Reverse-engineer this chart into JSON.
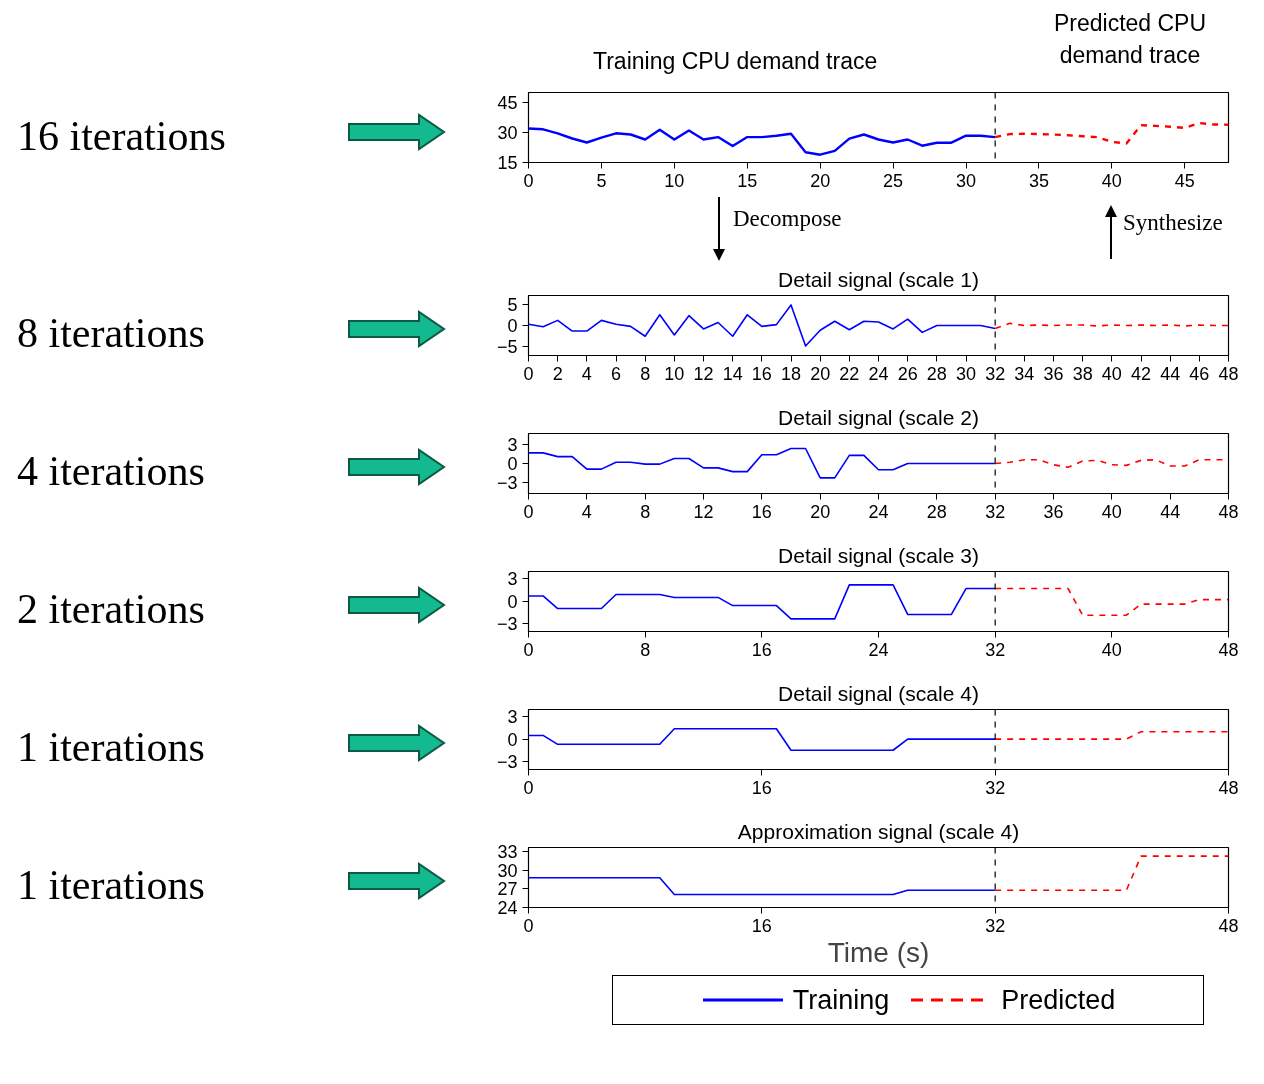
{
  "chart_data": [
    {
      "type": "line",
      "annotations": [
        "16 iterations",
        "Training CPU demand trace",
        "Predicted CPU demand trace",
        "Decompose",
        "Synthesize"
      ],
      "xlim": [
        0,
        48
      ],
      "xticks": [
        0,
        5,
        10,
        15,
        20,
        25,
        30,
        35,
        40,
        45
      ],
      "ylim": [
        15,
        50
      ],
      "yticks": [
        15,
        30,
        45
      ],
      "ref_lines": [
        {
          "axis": "x",
          "value": 32,
          "color": "#000000",
          "line_style": "dashed"
        }
      ],
      "series": [
        {
          "color": "#0000ff",
          "line_style": "solid",
          "x": [
            0,
            1,
            2,
            3,
            4,
            5,
            6,
            7,
            8,
            9,
            10,
            11,
            12,
            13,
            14,
            15,
            16,
            17,
            18,
            19,
            20,
            21,
            22,
            23,
            24,
            25,
            26,
            27,
            28,
            29,
            30,
            31,
            32
          ],
          "values": [
            32,
            31.6,
            29.6,
            27,
            25,
            27.4,
            29.6,
            29,
            26.5,
            31.4,
            26.5,
            31,
            26.5,
            27.7,
            23.2,
            27.7,
            27.7,
            28.4,
            29.4,
            20.1,
            18.9,
            20.8,
            26.9,
            29,
            26.5,
            25,
            26.5,
            23.4,
            24.9,
            24.9,
            28.4,
            28.4,
            27.7
          ]
        },
        {
          "color": "#ff0000",
          "line_style": "dashed",
          "x": [
            32,
            33,
            34,
            35,
            36,
            37,
            38,
            39,
            40,
            41,
            42,
            43,
            44,
            45,
            46,
            47,
            48
          ],
          "values": [
            27.7,
            29.2,
            29.4,
            29.2,
            29,
            28.6,
            28.1,
            27.7,
            25.3,
            24.5,
            33.7,
            33.3,
            32.9,
            32.3,
            34.7,
            34,
            33.9
          ]
        }
      ]
    },
    {
      "type": "line",
      "title": "Detail signal (scale 1)",
      "annotations": [
        "8 iterations"
      ],
      "xlim": [
        0,
        48
      ],
      "xticks": [
        0,
        2,
        4,
        6,
        8,
        10,
        12,
        14,
        16,
        18,
        20,
        22,
        24,
        26,
        28,
        30,
        32,
        34,
        36,
        38,
        40,
        42,
        44,
        46,
        48
      ],
      "ylim": [
        -7,
        7
      ],
      "yticks": [
        -5,
        0,
        5
      ],
      "ref_lines": [
        {
          "axis": "x",
          "value": 32,
          "color": "#000000",
          "line_style": "dashed"
        }
      ],
      "series": [
        {
          "color": "#0000ff",
          "line_style": "solid",
          "x": [
            0,
            1,
            2,
            3,
            4,
            5,
            6,
            7,
            8,
            9,
            10,
            11,
            12,
            13,
            14,
            15,
            16,
            17,
            18,
            19,
            20,
            21,
            22,
            23,
            24,
            25,
            26,
            27,
            28,
            29,
            30,
            31,
            32
          ],
          "values": [
            0.3,
            -0.3,
            1.2,
            -1.3,
            -1.3,
            1.2,
            0.3,
            -0.2,
            -2.5,
            2.5,
            -2.2,
            2.3,
            -0.8,
            0.7,
            -2.5,
            2.5,
            -0.2,
            0.2,
            4.8,
            -4.8,
            -1.1,
            1,
            -1,
            1,
            0.8,
            -0.8,
            1.5,
            -1.6,
            0,
            0,
            0,
            0,
            -0.7
          ]
        },
        {
          "color": "#ff0000",
          "line_style": "dashed",
          "x": [
            32,
            33,
            34,
            35,
            36,
            37,
            38,
            39,
            40,
            41,
            42,
            43,
            44,
            45,
            46,
            47,
            48
          ],
          "values": [
            -0.7,
            0.5,
            0,
            0.1,
            0,
            0.1,
            0.1,
            -0.1,
            0.1,
            0,
            0.1,
            0,
            0.1,
            -0.1,
            0.1,
            0,
            0
          ]
        }
      ]
    },
    {
      "type": "line",
      "title": "Detail signal (scale 2)",
      "annotations": [
        "4 iterations"
      ],
      "xlim": [
        0,
        48
      ],
      "xticks": [
        0,
        4,
        8,
        12,
        16,
        20,
        24,
        28,
        32,
        36,
        40,
        44,
        48
      ],
      "ylim": [
        -4.8,
        4.8
      ],
      "yticks": [
        -3,
        0,
        3
      ],
      "ref_lines": [
        {
          "axis": "x",
          "value": 32,
          "color": "#000000",
          "line_style": "dashed"
        }
      ],
      "series": [
        {
          "color": "#0000ff",
          "line_style": "solid",
          "x": [
            0,
            1,
            2,
            3,
            4,
            5,
            6,
            7,
            8,
            9,
            10,
            11,
            12,
            13,
            14,
            15,
            16,
            17,
            18,
            19,
            20,
            21,
            22,
            23,
            24,
            25,
            26,
            27,
            28,
            29,
            30,
            31,
            32
          ],
          "values": [
            1.7,
            1.7,
            1.1,
            1.1,
            -0.9,
            -0.9,
            0.2,
            0.2,
            -0.1,
            -0.1,
            0.8,
            0.8,
            -0.7,
            -0.7,
            -1.3,
            -1.3,
            1.4,
            1.4,
            2.4,
            2.4,
            -2.3,
            -2.3,
            1.3,
            1.3,
            -1,
            -1,
            0,
            0,
            0,
            0,
            0,
            0,
            0
          ]
        },
        {
          "color": "#ff0000",
          "line_style": "dashed",
          "x": [
            32,
            33,
            34,
            35,
            36,
            37,
            38,
            39,
            40,
            41,
            42,
            43,
            44,
            45,
            46,
            47,
            48
          ],
          "values": [
            0,
            0.2,
            0.6,
            0.6,
            -0.2,
            -0.6,
            0.4,
            0.5,
            -0.2,
            -0.3,
            0.5,
            0.6,
            -0.4,
            -0.4,
            0.6,
            0.6,
            0.6
          ]
        }
      ]
    },
    {
      "type": "line",
      "title": "Detail signal (scale 3)",
      "annotations": [
        "2 iterations"
      ],
      "xlim": [
        0,
        48
      ],
      "xticks": [
        0,
        8,
        16,
        24,
        32,
        40,
        48
      ],
      "ylim": [
        -4.1,
        4
      ],
      "yticks": [
        -3,
        0,
        3
      ],
      "ref_lines": [
        {
          "axis": "x",
          "value": 32,
          "color": "#000000",
          "line_style": "dashed"
        }
      ],
      "series": [
        {
          "color": "#0000ff",
          "line_style": "solid",
          "x": [
            0,
            1,
            2,
            3,
            4,
            5,
            6,
            7,
            8,
            9,
            10,
            11,
            12,
            13,
            14,
            15,
            16,
            17,
            18,
            19,
            20,
            21,
            22,
            23,
            24,
            25,
            26,
            27,
            28,
            29,
            30,
            31,
            32
          ],
          "values": [
            0.7,
            0.7,
            -1,
            -1,
            -1,
            -1,
            0.9,
            0.9,
            0.9,
            0.9,
            0.5,
            0.5,
            0.5,
            0.5,
            -0.6,
            -0.6,
            -0.6,
            -0.6,
            -2.4,
            -2.4,
            -2.4,
            -2.4,
            2.2,
            2.2,
            2.2,
            2.2,
            -1.8,
            -1.8,
            -1.8,
            -1.8,
            1.7,
            1.7,
            1.7
          ]
        },
        {
          "color": "#ff0000",
          "line_style": "dashed",
          "x": [
            32,
            33,
            34,
            35,
            36,
            37,
            38,
            39,
            40,
            41,
            42,
            43,
            44,
            45,
            46,
            47,
            48
          ],
          "values": [
            1.7,
            1.7,
            1.7,
            1.7,
            1.7,
            1.7,
            -1.9,
            -1.9,
            -1.9,
            -1.9,
            -0.4,
            -0.4,
            -0.4,
            -0.4,
            0.2,
            0.2,
            0.2
          ]
        }
      ]
    },
    {
      "type": "line",
      "title": "Detail signal (scale 4)",
      "annotations": [
        "1 iterations"
      ],
      "xlim": [
        0,
        48
      ],
      "xticks": [
        0,
        16,
        32,
        48
      ],
      "ylim": [
        -4.1,
        4
      ],
      "yticks": [
        -3,
        0,
        3
      ],
      "ref_lines": [
        {
          "axis": "x",
          "value": 32,
          "color": "#000000",
          "line_style": "dashed"
        }
      ],
      "series": [
        {
          "color": "#0000ff",
          "line_style": "solid",
          "x": [
            0,
            1,
            2,
            3,
            4,
            5,
            6,
            7,
            8,
            9,
            10,
            11,
            12,
            13,
            14,
            15,
            16,
            17,
            18,
            19,
            20,
            21,
            22,
            23,
            24,
            25,
            26,
            27,
            28,
            29,
            30,
            31,
            32
          ],
          "values": [
            0.5,
            0.5,
            -0.7,
            -0.7,
            -0.7,
            -0.7,
            -0.7,
            -0.7,
            -0.7,
            -0.7,
            1.4,
            1.4,
            1.4,
            1.4,
            1.4,
            1.4,
            1.4,
            1.4,
            -1.5,
            -1.5,
            -1.5,
            -1.5,
            -1.5,
            -1.5,
            -1.5,
            -1.5,
            0,
            0,
            0,
            0,
            0,
            0,
            0
          ]
        },
        {
          "color": "#ff0000",
          "line_style": "dashed",
          "x": [
            32,
            33,
            34,
            35,
            36,
            37,
            38,
            39,
            40,
            41,
            42,
            43,
            44,
            45,
            46,
            47,
            48
          ],
          "values": [
            0,
            0,
            0,
            0,
            0,
            0,
            0,
            0,
            0,
            0,
            1,
            1,
            1,
            1,
            1,
            1,
            1
          ]
        }
      ]
    },
    {
      "type": "line",
      "title": "Approximation signal (scale 4)",
      "xlabel": "Time (s)",
      "annotations": [
        "1 iterations"
      ],
      "legend": "bottom",
      "xlim": [
        0,
        48
      ],
      "xticks": [
        0,
        16,
        32,
        48
      ],
      "ylim": [
        24,
        33.7
      ],
      "yticks": [
        24,
        27,
        30,
        33
      ],
      "ref_lines": [
        {
          "axis": "x",
          "value": 32,
          "color": "#000000",
          "line_style": "dashed"
        }
      ],
      "series": [
        {
          "name": "Training",
          "color": "#0000ff",
          "line_style": "solid",
          "x": [
            0,
            1,
            2,
            3,
            4,
            5,
            6,
            7,
            8,
            9,
            10,
            11,
            12,
            13,
            14,
            15,
            16,
            17,
            18,
            19,
            20,
            21,
            22,
            23,
            24,
            25,
            26,
            27,
            28,
            29,
            30,
            31,
            32
          ],
          "values": [
            28.8,
            28.8,
            28.8,
            28.8,
            28.8,
            28.8,
            28.8,
            28.8,
            28.8,
            28.8,
            26.1,
            26.1,
            26.1,
            26.1,
            26.1,
            26.1,
            26.1,
            26.1,
            26.1,
            26.1,
            26.1,
            26.1,
            26.1,
            26.1,
            26.1,
            26.1,
            26.8,
            26.8,
            26.8,
            26.8,
            26.8,
            26.8,
            26.8
          ]
        },
        {
          "name": "Predicted",
          "color": "#ff0000",
          "line_style": "dashed",
          "x": [
            32,
            33,
            34,
            35,
            36,
            37,
            38,
            39,
            40,
            41,
            42,
            43,
            44,
            45,
            46,
            47,
            48
          ],
          "values": [
            26.8,
            26.8,
            26.8,
            26.8,
            26.8,
            26.8,
            26.8,
            26.8,
            26.8,
            26.8,
            32.3,
            32.3,
            32.3,
            32.3,
            32.3,
            32.3,
            32.3
          ]
        }
      ]
    }
  ]
}
